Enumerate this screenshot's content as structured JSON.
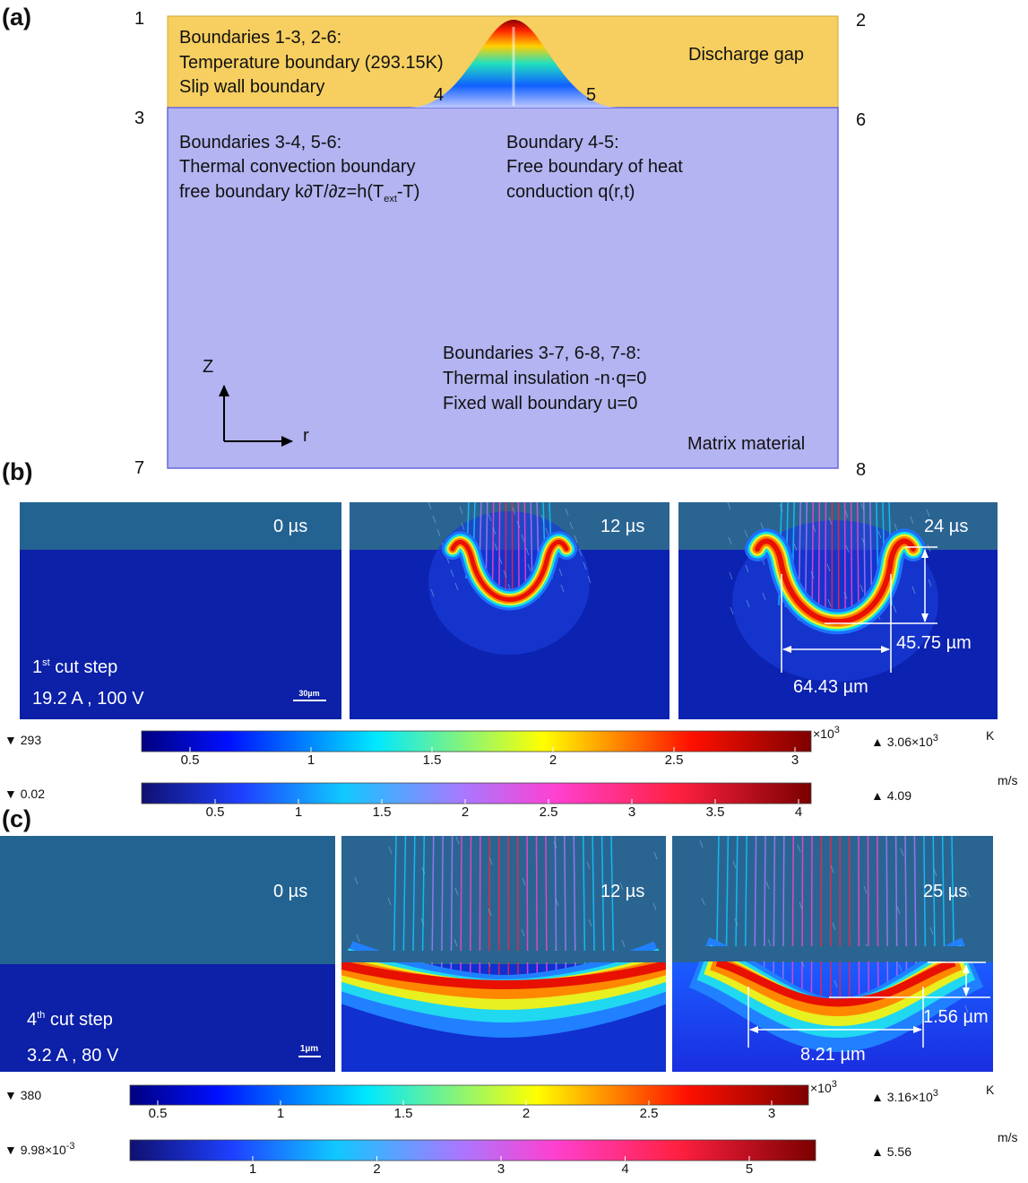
{
  "panel_a": {
    "label": "(a)",
    "corner_labels": [
      "1",
      "2",
      "3",
      "6",
      "7",
      "8"
    ],
    "gap_points": [
      "4",
      "5"
    ],
    "gap_boundary_text": [
      "Boundaries 1-3, 2-6:",
      "Temperature boundary (293.15K)",
      "Slip wall boundary"
    ],
    "gap_name": "Discharge gap",
    "convection_text": {
      "lines": [
        "Boundaries 3-4, 5-6:",
        "Thermal convection boundary"
      ],
      "formula_pre": "free boundary k∂T/∂z=h(T",
      "formula_sub": "ext",
      "formula_post": "-T)"
    },
    "conduction_text": [
      "Boundary 4-5:",
      "Free boundary of heat",
      "conduction q(r,t)"
    ],
    "insulation_text": [
      "Boundaries 3-7, 6-8, 7-8:",
      "Thermal insulation -n·q=0",
      "Fixed wall boundary u=0"
    ],
    "axes": {
      "z": "Z",
      "r": "r"
    },
    "material_name": "Matrix material"
  },
  "panel_b": {
    "label": "(b)",
    "times": [
      "0 µs",
      "12 µs",
      "24 µs"
    ],
    "step_number": "1",
    "step_suffix": "st",
    "step_text": " cut step",
    "conditions": "19.2 A , 100 V",
    "scale_bar": "30µm",
    "depth": "45.75 µm",
    "width": "64.43 µm",
    "temperature_bar": {
      "min": "▼ 293",
      "ticks": [
        0.5,
        1,
        1.5,
        2,
        2.5,
        3
      ],
      "multiplier": "×10",
      "multiplier_exp": "3",
      "max": "▲ 3.06×10",
      "max_exp": "3",
      "unit": "K"
    },
    "velocity_bar": {
      "min": "▼ 0.02",
      "ticks": [
        0.5,
        1,
        1.5,
        2,
        2.5,
        3,
        3.5,
        4
      ],
      "max": "▲ 4.09",
      "unit": "m/s"
    }
  },
  "panel_c": {
    "label": "(c)",
    "times": [
      "0 µs",
      "12 µs",
      "25 µs"
    ],
    "step_number": "4",
    "step_suffix": "th",
    "step_text": " cut step",
    "conditions": "3.2 A , 80 V",
    "scale_bar": "1µm",
    "depth": "1.56 µm",
    "width": "8.21 µm",
    "temperature_bar": {
      "min": "▼ 380",
      "ticks": [
        0.5,
        1,
        1.5,
        2,
        2.5,
        3
      ],
      "multiplier": "×10",
      "multiplier_exp": "3",
      "max": "▲ 3.16×10",
      "max_exp": "3",
      "unit": "K"
    },
    "velocity_bar": {
      "min": "▼ 9.98×10",
      "min_exp": "-3",
      "ticks": [
        1,
        2,
        3,
        4,
        5
      ],
      "max": "▲ 5.56",
      "unit": "m/s"
    }
  }
}
